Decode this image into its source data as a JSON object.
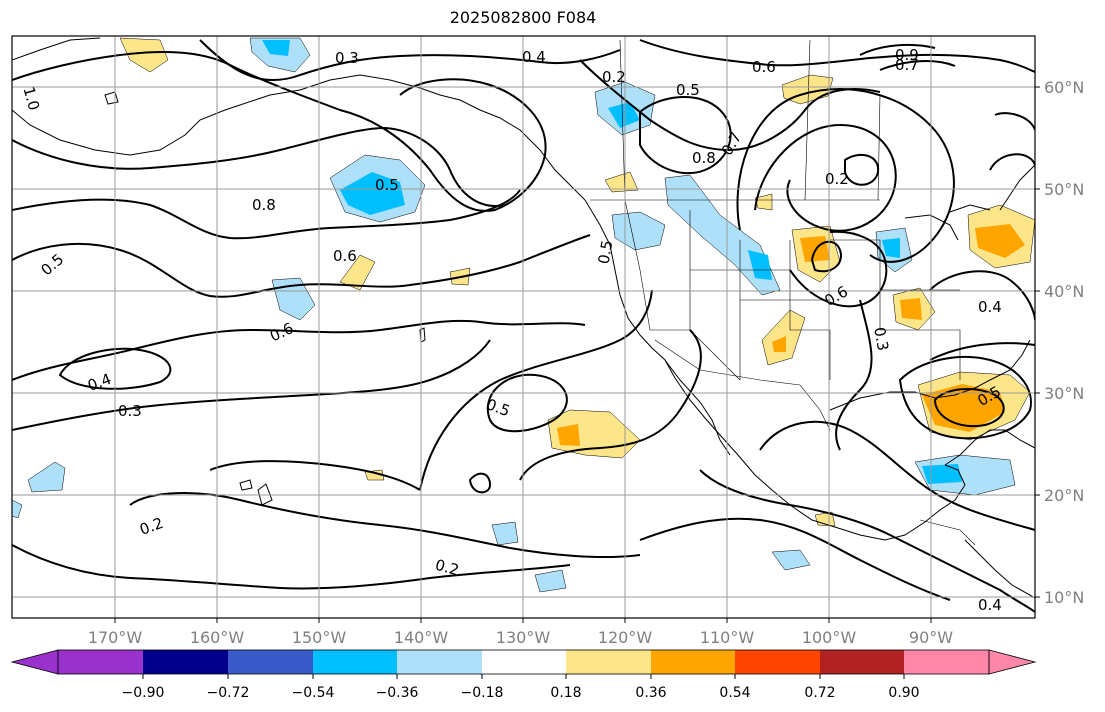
{
  "title": "2025082800 F084",
  "colors": {
    "land_outline": "#000000",
    "contour": "#000000",
    "grid": "#9a9a9a",
    "tick_label": "#808080"
  },
  "lon_labels": [
    "170°W",
    "160°W",
    "150°W",
    "140°W",
    "130°W",
    "120°W",
    "110°W",
    "100°W",
    "90°W"
  ],
  "lat_labels": [
    "60°N",
    "50°N",
    "40°N",
    "30°N",
    "20°N",
    "10°N"
  ],
  "contour_labels": [
    "0.3",
    "0.4",
    "0.2",
    "0.6",
    "0.9",
    "0.5",
    "0.7",
    "1.0",
    "0.8",
    "0.5",
    "0.8",
    "0.2",
    "0.7",
    "0.5",
    "0.6",
    "0.5",
    "0.6",
    "0.3",
    "0.4",
    "0.6",
    "0.4",
    "0.3",
    "0.5",
    "0.5",
    "0.2",
    "0.2",
    "0.4"
  ],
  "colorbar": {
    "colors": [
      "#9932cc",
      "#00008b",
      "#3a5ac9",
      "#00bfff",
      "#aee0fa",
      "#ffffff",
      "#fde68a",
      "#ffa500",
      "#ff4500",
      "#b22222",
      "#ff88aa"
    ],
    "tick_labels": [
      "−0.90",
      "−0.72",
      "−0.54",
      "−0.36",
      "−0.18",
      "0.18",
      "0.36",
      "0.54",
      "0.72",
      "0.90"
    ]
  }
}
